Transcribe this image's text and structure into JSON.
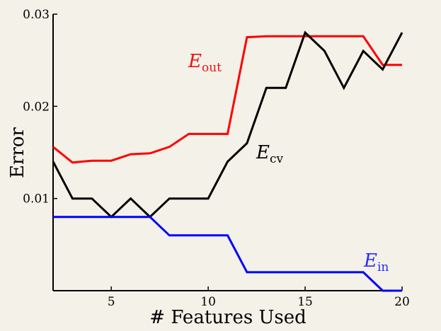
{
  "chart_data": {
    "type": "line",
    "xlabel": "# Features Used",
    "ylabel": "Error",
    "xlim": [
      2,
      20
    ],
    "ylim": [
      0,
      0.03
    ],
    "x_ticks": [
      5,
      10,
      15,
      20
    ],
    "x_tick_labels": [
      "5",
      "10",
      "15",
      "20"
    ],
    "y_ticks": [
      0.01,
      0.02,
      0.03
    ],
    "y_tick_labels": [
      "0.01",
      "0.02",
      "0.03"
    ],
    "grid": false,
    "legend": "inline labels next to lines",
    "x": [
      2,
      3,
      4,
      5,
      6,
      7,
      8,
      9,
      10,
      11,
      12,
      13,
      14,
      15,
      16,
      17,
      18,
      19,
      20
    ],
    "series": [
      {
        "name": "E_out",
        "label_main": "E",
        "label_sub": "out",
        "color": "#ff0000",
        "values": [
          0.0156,
          0.0139,
          0.0141,
          0.0141,
          0.0148,
          0.0149,
          0.0156,
          0.017,
          0.017,
          0.017,
          0.0275,
          0.0276,
          0.0276,
          0.0276,
          0.0276,
          0.0276,
          0.0276,
          0.0245,
          0.0245
        ]
      },
      {
        "name": "E_cv",
        "label_main": "E",
        "label_sub": "cv",
        "color": "#000000",
        "values": [
          0.014,
          0.01,
          0.01,
          0.008,
          0.01,
          0.008,
          0.01,
          0.01,
          0.01,
          0.014,
          0.016,
          0.022,
          0.022,
          0.028,
          0.026,
          0.022,
          0.026,
          0.024,
          0.028
        ]
      },
      {
        "name": "E_in",
        "label_main": "E",
        "label_sub": "in",
        "color": "#0000ff",
        "values": [
          0.008,
          0.008,
          0.008,
          0.008,
          0.008,
          0.008,
          0.006,
          0.006,
          0.006,
          0.006,
          0.002,
          0.002,
          0.002,
          0.002,
          0.002,
          0.002,
          0.002,
          0.0,
          0.0
        ]
      }
    ]
  }
}
